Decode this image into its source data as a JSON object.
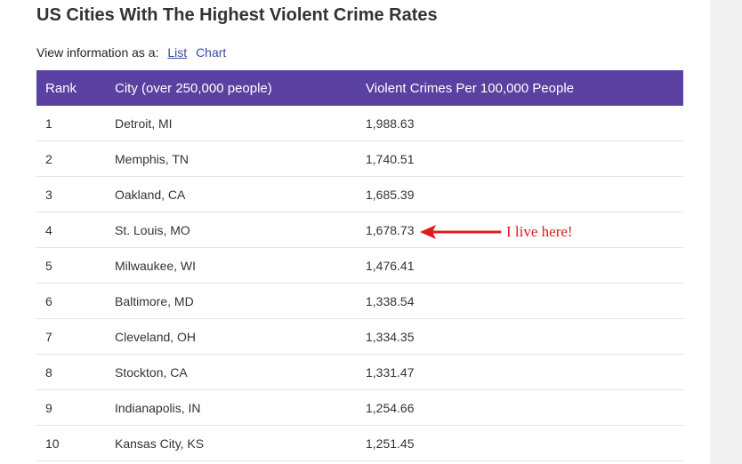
{
  "title": "US Cities With The Highest Violent Crime Rates",
  "view": {
    "label": "View information as a:",
    "options": [
      "List",
      "Chart"
    ],
    "active": "List"
  },
  "table": {
    "headers": {
      "rank": "Rank",
      "city": "City (over 250,000 people)",
      "rate": "Violent Crimes Per 100,000 People"
    },
    "rows": [
      {
        "rank": "1",
        "city": "Detroit, MI",
        "rate": "1,988.63"
      },
      {
        "rank": "2",
        "city": "Memphis, TN",
        "rate": "1,740.51"
      },
      {
        "rank": "3",
        "city": "Oakland, CA",
        "rate": "1,685.39"
      },
      {
        "rank": "4",
        "city": "St. Louis, MO",
        "rate": "1,678.73"
      },
      {
        "rank": "5",
        "city": "Milwaukee, WI",
        "rate": "1,476.41"
      },
      {
        "rank": "6",
        "city": "Baltimore, MD",
        "rate": "1,338.54"
      },
      {
        "rank": "7",
        "city": "Cleveland, OH",
        "rate": "1,334.35"
      },
      {
        "rank": "8",
        "city": "Stockton, CA",
        "rate": "1,331.47"
      },
      {
        "rank": "9",
        "city": "Indianapolis, IN",
        "rate": "1,254.66"
      },
      {
        "rank": "10",
        "city": "Kansas City, KS",
        "rate": "1,251.45"
      }
    ]
  },
  "annotation": {
    "text": "I live here!",
    "color": "#e01a1a",
    "icon": "left-arrow-icon"
  },
  "colors": {
    "header_bg": "#5a40a0",
    "link": "#3b4d9e"
  }
}
